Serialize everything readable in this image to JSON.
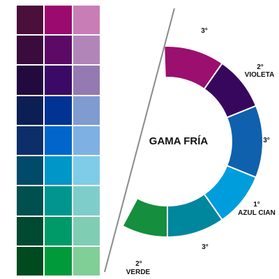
{
  "swatches": [
    [
      "#4a0f3a",
      "#9b0a6e",
      "#c97db6"
    ],
    [
      "#3a0c3e",
      "#5c0a66",
      "#b285b8"
    ],
    [
      "#220a3e",
      "#3a0a66",
      "#9479b2"
    ],
    [
      "#0c1f55",
      "#003394",
      "#7f9bd0"
    ],
    [
      "#0c2f6a",
      "#0066cc",
      "#7fb0e3"
    ],
    [
      "#004a6a",
      "#0096c8",
      "#7fcce8"
    ],
    [
      "#00504f",
      "#00968f",
      "#7fcdcb"
    ],
    [
      "#004a32",
      "#009a68",
      "#7fceb3"
    ],
    [
      "#004a20",
      "#009a3a",
      "#7fcf97"
    ]
  ],
  "wheel": {
    "center_label": "GAMA FRÍA",
    "segments": [
      {
        "name": "magenta",
        "color": "#9b0f6f"
      },
      {
        "name": "violet",
        "color": "#37075e"
      },
      {
        "name": "blue",
        "color": "#0f61ad"
      },
      {
        "name": "cyan",
        "color": "#009ddc"
      },
      {
        "name": "teal",
        "color": "#00879e"
      },
      {
        "name": "green",
        "color": "#158e3e"
      }
    ],
    "labels": {
      "magenta_order": "3°",
      "violet_order": "2°",
      "violet_name": "VIOLETA",
      "blue_order": "3°",
      "cyan_order": "1°",
      "cyan_name": "AZUL CIAN",
      "teal_order": "3°",
      "green_order": "2°",
      "green_name": "VERDE"
    },
    "divider_color": "#8a8a8a"
  }
}
